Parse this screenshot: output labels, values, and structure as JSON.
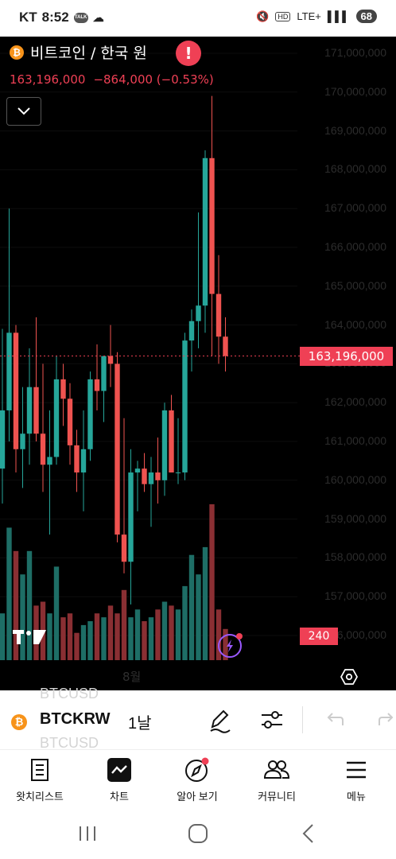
{
  "status_bar": {
    "carrier": "KT",
    "time": "8:52",
    "talk_badge": "TALK",
    "network": "LTE+",
    "battery": "68"
  },
  "header": {
    "title": "비트코인 / 한국 원",
    "price": "163,196,000",
    "change": "−864,000 (−0.53%)",
    "alert_icon": "exclamation-icon"
  },
  "chart_data": {
    "type": "candlestick",
    "x_label": "8월",
    "y_ticks": [
      "171,000,000",
      "170,000,000",
      "169,000,000",
      "168,000,000",
      "167,000,000",
      "166,000,000",
      "165,000,000",
      "164,000,000",
      "163,000,000",
      "162,000,000",
      "161,000,000",
      "160,000,000",
      "159,000,000",
      "158,000,000",
      "157,000,000",
      "156,000,000"
    ],
    "current_price_label": "163,196,000",
    "volume_label": "240",
    "up_color": "#26a69a",
    "down_color": "#ef5350",
    "candles": [
      {
        "o": 160.3,
        "h": 163.9,
        "l": 159.4,
        "c": 161.8
      },
      {
        "o": 161.8,
        "h": 167.0,
        "l": 161.0,
        "c": 163.8
      },
      {
        "o": 163.8,
        "h": 164.0,
        "l": 160.2,
        "c": 160.8
      },
      {
        "o": 160.8,
        "h": 162.4,
        "l": 159.8,
        "c": 161.2
      },
      {
        "o": 161.2,
        "h": 163.4,
        "l": 160.4,
        "c": 162.4
      },
      {
        "o": 162.4,
        "h": 164.2,
        "l": 161.0,
        "c": 161.2
      },
      {
        "o": 161.2,
        "h": 163.0,
        "l": 159.7,
        "c": 160.4
      },
      {
        "o": 160.4,
        "h": 161.8,
        "l": 158.6,
        "c": 160.6
      },
      {
        "o": 160.6,
        "h": 163.2,
        "l": 160.4,
        "c": 162.6
      },
      {
        "o": 162.6,
        "h": 163.0,
        "l": 161.4,
        "c": 162.1
      },
      {
        "o": 162.1,
        "h": 162.5,
        "l": 160.4,
        "c": 160.9
      },
      {
        "o": 160.9,
        "h": 161.3,
        "l": 159.7,
        "c": 160.2
      },
      {
        "o": 160.2,
        "h": 161.8,
        "l": 159.2,
        "c": 160.8
      },
      {
        "o": 160.8,
        "h": 162.8,
        "l": 160.5,
        "c": 162.6
      },
      {
        "o": 162.6,
        "h": 163.5,
        "l": 161.8,
        "c": 162.3
      },
      {
        "o": 162.3,
        "h": 163.2,
        "l": 161.5,
        "c": 163.2
      },
      {
        "o": 163.2,
        "h": 164.0,
        "l": 162.4,
        "c": 163.0
      },
      {
        "o": 163.0,
        "h": 163.3,
        "l": 158.4,
        "c": 158.6
      },
      {
        "o": 158.6,
        "h": 161.6,
        "l": 157.6,
        "c": 157.9
      },
      {
        "o": 157.9,
        "h": 160.8,
        "l": 156.8,
        "c": 160.2
      },
      {
        "o": 160.2,
        "h": 160.5,
        "l": 159.2,
        "c": 160.3
      },
      {
        "o": 160.3,
        "h": 160.7,
        "l": 159.7,
        "c": 159.9
      },
      {
        "o": 159.9,
        "h": 160.6,
        "l": 158.8,
        "c": 160.2
      },
      {
        "o": 160.2,
        "h": 161.1,
        "l": 159.4,
        "c": 160.0
      },
      {
        "o": 160.0,
        "h": 162.0,
        "l": 159.6,
        "c": 161.8
      },
      {
        "o": 161.8,
        "h": 162.2,
        "l": 160.2,
        "c": 160.2
      },
      {
        "o": 160.2,
        "h": 161.6,
        "l": 159.9,
        "c": 160.2
      },
      {
        "o": 160.2,
        "h": 163.8,
        "l": 160.0,
        "c": 163.6
      },
      {
        "o": 163.6,
        "h": 164.4,
        "l": 162.8,
        "c": 164.1
      },
      {
        "o": 164.1,
        "h": 166.9,
        "l": 163.4,
        "c": 164.5
      },
      {
        "o": 164.5,
        "h": 168.5,
        "l": 163.8,
        "c": 168.3
      },
      {
        "o": 168.3,
        "h": 169.9,
        "l": 163.2,
        "c": 164.8
      },
      {
        "o": 164.8,
        "h": 165.8,
        "l": 163.0,
        "c": 163.7
      },
      {
        "o": 163.7,
        "h": 164.2,
        "l": 162.8,
        "c": 163.2
      }
    ],
    "volumes": [
      12,
      34,
      28,
      22,
      28,
      14,
      15,
      12,
      24,
      11,
      12,
      7,
      9,
      10,
      12,
      11,
      14,
      12,
      18,
      11,
      13,
      10,
      11,
      13,
      15,
      14,
      13,
      19,
      27,
      22,
      29,
      40,
      13,
      8
    ]
  },
  "toolbar": {
    "ghost_top": "BTCUSD",
    "ghost_bottom": "BTCUSD",
    "symbol": "BTCKRW",
    "interval": "1날",
    "draw_icon": "pen-icon",
    "indicators_icon": "sliders-icon",
    "undo_icon": "undo-icon",
    "redo_icon": "redo-icon"
  },
  "nav": {
    "items": [
      {
        "label": "왓치리스트",
        "icon": "watchlist-icon"
      },
      {
        "label": "차트",
        "icon": "chart-icon"
      },
      {
        "label": "알아 보기",
        "icon": "compass-icon"
      },
      {
        "label": "커뮤니티",
        "icon": "community-icon"
      },
      {
        "label": "메뉴",
        "icon": "menu-icon"
      }
    ]
  },
  "system_nav": {
    "recent": "recent-apps-icon",
    "home": "home-icon",
    "back": "back-icon"
  }
}
